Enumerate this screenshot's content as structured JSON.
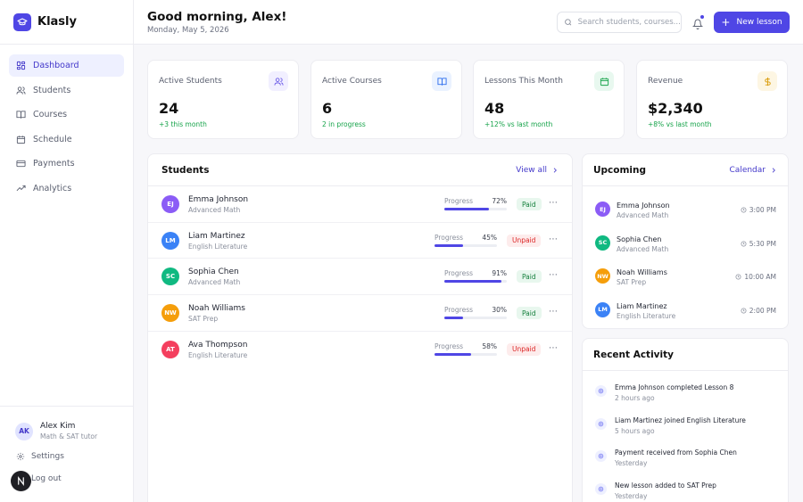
{
  "brand": {
    "name": "Klasly"
  },
  "sidebar": {
    "items": [
      {
        "label": "Dashboard",
        "icon": "dashboard-icon",
        "active": true
      },
      {
        "label": "Students",
        "icon": "users-icon",
        "active": false
      },
      {
        "label": "Courses",
        "icon": "book-icon",
        "active": false
      },
      {
        "label": "Schedule",
        "icon": "calendar-icon",
        "active": false
      },
      {
        "label": "Payments",
        "icon": "credit-card-icon",
        "active": false
      },
      {
        "label": "Analytics",
        "icon": "trend-icon",
        "active": false
      }
    ],
    "user": {
      "initials": "AK",
      "name": "Alex Kim",
      "role": "Math & SAT tutor"
    },
    "settings_label": "Settings",
    "logout_label": "Log out"
  },
  "header": {
    "greeting": "Good morning, Alex!",
    "date": "Monday, May 5, 2026",
    "search_placeholder": "Search students, courses...",
    "new_button_label": "New lesson"
  },
  "stats": [
    {
      "label": "Active Students",
      "value": "24",
      "sub": "+3 this month",
      "icon": "users-icon",
      "icon_bg": "#f1efff",
      "icon_color": "#6d5ce8"
    },
    {
      "label": "Active Courses",
      "value": "6",
      "sub": "2 in progress",
      "icon": "book-icon",
      "icon_bg": "#eaf2ff",
      "icon_color": "#2f6fed"
    },
    {
      "label": "Lessons This Month",
      "value": "48",
      "sub": "+12% vs last month",
      "icon": "calendar-icon",
      "icon_bg": "#e8f8ef",
      "icon_color": "#16a34a"
    },
    {
      "label": "Revenue",
      "value": "$2,340",
      "sub": "+8% vs last month",
      "icon": "dollar-icon",
      "icon_bg": "#fdf6e3",
      "icon_color": "#d99a06"
    }
  ],
  "students": {
    "title": "Students",
    "view_all_label": "View all",
    "progress_label": "Progress",
    "rows": [
      {
        "initials": "EJ",
        "name": "Emma Johnson",
        "course": "Advanced Math",
        "progress": "72%",
        "progress_value": 72,
        "status": "Paid",
        "color": "#8b5cf6"
      },
      {
        "initials": "LM",
        "name": "Liam Martinez",
        "course": "English Literature",
        "progress": "45%",
        "progress_value": 45,
        "status": "Unpaid",
        "color": "#3b82f6"
      },
      {
        "initials": "SC",
        "name": "Sophia Chen",
        "course": "Advanced Math",
        "progress": "91%",
        "progress_value": 91,
        "status": "Paid",
        "color": "#10b981"
      },
      {
        "initials": "NW",
        "name": "Noah Williams",
        "course": "SAT Prep",
        "progress": "30%",
        "progress_value": 30,
        "status": "Paid",
        "color": "#f59e0b"
      },
      {
        "initials": "AT",
        "name": "Ava Thompson",
        "course": "English Literature",
        "progress": "58%",
        "progress_value": 58,
        "status": "Unpaid",
        "color": "#f43f5e"
      }
    ]
  },
  "upcoming": {
    "title": "Upcoming",
    "calendar_label": "Calendar",
    "items": [
      {
        "initials": "EJ",
        "name": "Emma Johnson",
        "course": "Advanced Math",
        "time": "3:00 PM",
        "color": "#8b5cf6"
      },
      {
        "initials": "SC",
        "name": "Sophia Chen",
        "course": "Advanced Math",
        "time": "5:30 PM",
        "color": "#10b981"
      },
      {
        "initials": "NW",
        "name": "Noah Williams",
        "course": "SAT Prep",
        "time": "10:00 AM",
        "color": "#f59e0b"
      },
      {
        "initials": "LM",
        "name": "Liam Martinez",
        "course": "English Literature",
        "time": "2:00 PM",
        "color": "#3b82f6"
      }
    ]
  },
  "activity": {
    "title": "Recent Activity",
    "items": [
      {
        "text": "Emma Johnson completed Lesson 8",
        "time": "2 hours ago"
      },
      {
        "text": "Liam Martinez joined English Literature",
        "time": "5 hours ago"
      },
      {
        "text": "Payment received from Sophia Chen",
        "time": "Yesterday"
      },
      {
        "text": "New lesson added to SAT Prep",
        "time": "Yesterday"
      }
    ]
  }
}
